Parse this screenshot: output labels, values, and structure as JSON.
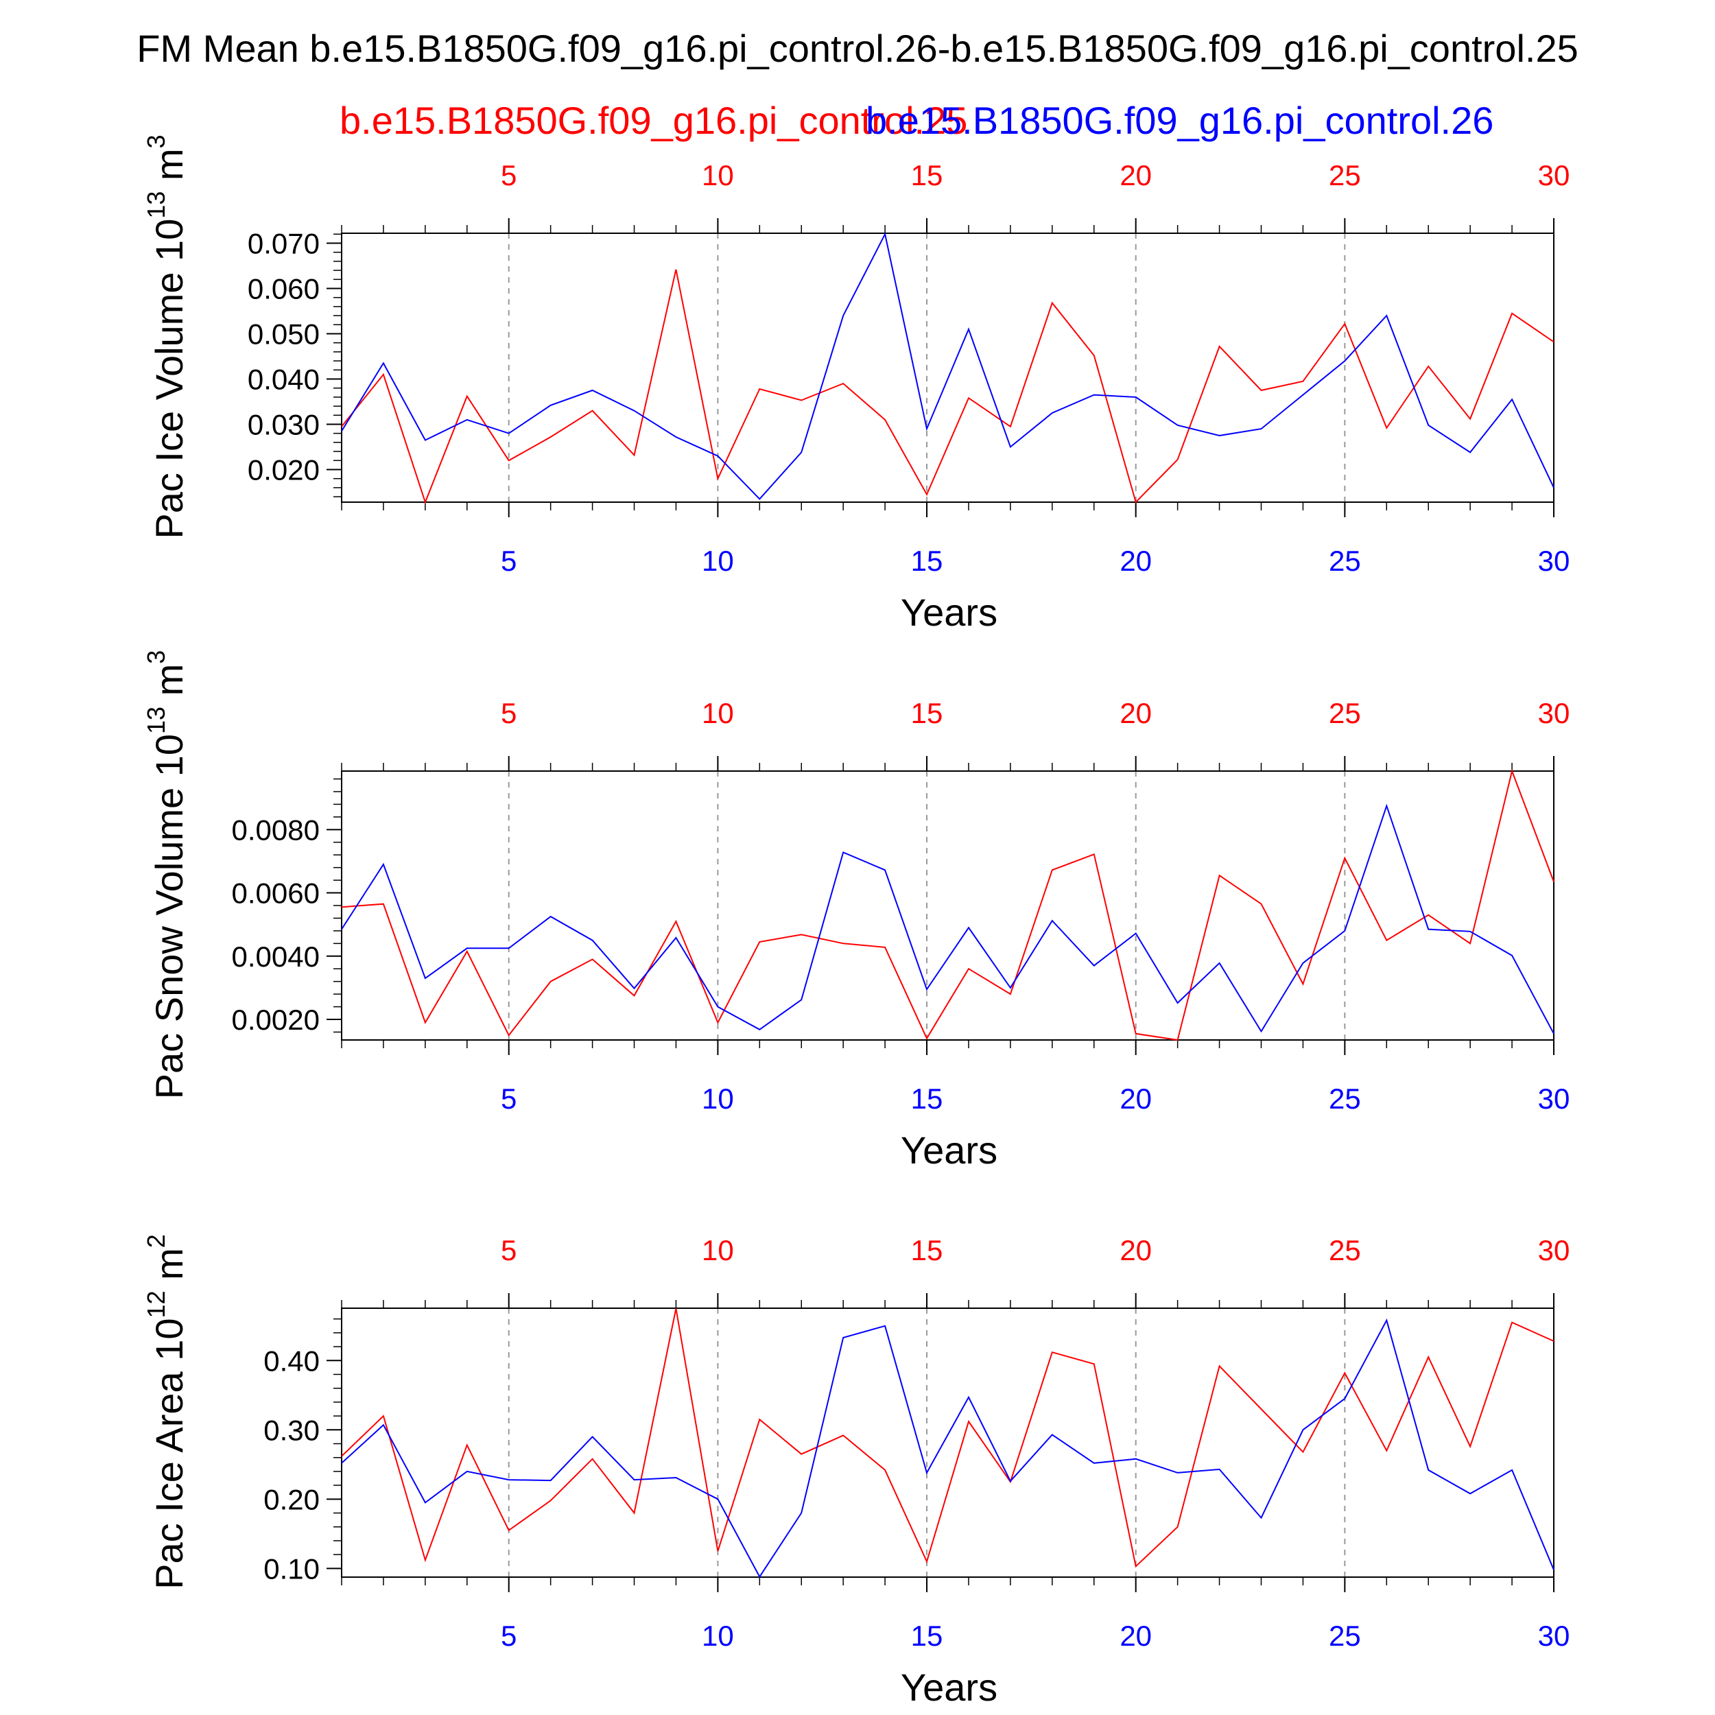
{
  "title": "FM Mean b.e15.B1850G.f09_g16.pi_control.26-b.e15.B1850G.f09_g16.pi_control.25",
  "legend": {
    "red_label": "b.e15.B1850G.f09_g16.pi_control.25",
    "blue_label": "b.e15.B1850G.f09_g16.pi_control.26"
  },
  "colors": {
    "red": "#ff0000",
    "blue": "#0000ff",
    "axis": "#000000",
    "grid": "#999999"
  },
  "chart_data": [
    {
      "type": "line",
      "ylabel": "Pac Ice Volume 10",
      "yunit_exp": "13",
      "yunit_rest": " m",
      "yunit_pow": "3",
      "xlabel": "Years",
      "xlim": [
        1,
        30
      ],
      "ylim": [
        0.0128,
        0.0722
      ],
      "yticks": [
        0.02,
        0.03,
        0.04,
        0.05,
        0.06,
        0.07
      ],
      "ytick_labels": [
        "0.020",
        "0.030",
        "0.040",
        "0.050",
        "0.060",
        "0.070"
      ],
      "yminor": 0.002,
      "xticks": [
        5,
        10,
        15,
        20,
        25,
        30
      ],
      "xtick_labels": [
        "5",
        "10",
        "15",
        "20",
        "25",
        "30"
      ],
      "x": [
        1,
        2,
        3,
        4,
        5,
        6,
        7,
        8,
        9,
        10,
        11,
        12,
        13,
        14,
        15,
        16,
        17,
        18,
        19,
        20,
        21,
        22,
        23,
        24,
        25,
        26,
        27,
        28,
        29,
        30
      ],
      "series": [
        {
          "name": "b.e15.B1850G.f09_g16.pi_control.25",
          "color": "red",
          "values": [
            0.0295,
            0.041,
            0.0128,
            0.0362,
            0.022,
            0.0272,
            0.033,
            0.0232,
            0.0642,
            0.018,
            0.0378,
            0.0353,
            0.039,
            0.031,
            0.0145,
            0.0358,
            0.0295,
            0.0568,
            0.0452,
            0.0128,
            0.0222,
            0.0472,
            0.0375,
            0.0395,
            0.0522,
            0.0292,
            0.0428,
            0.0312,
            0.0545,
            0.0482
          ]
        },
        {
          "name": "b.e15.B1850G.f09_g16.pi_control.26",
          "color": "blue",
          "values": [
            0.0285,
            0.0435,
            0.0265,
            0.031,
            0.028,
            0.0342,
            0.0375,
            0.033,
            0.0272,
            0.023,
            0.0135,
            0.0238,
            0.054,
            0.072,
            0.029,
            0.051,
            0.025,
            0.0325,
            0.0365,
            0.036,
            0.0298,
            0.0275,
            0.029,
            0.0365,
            0.044,
            0.054,
            0.0298,
            0.0238,
            0.0355,
            0.016
          ]
        }
      ]
    },
    {
      "type": "line",
      "ylabel": "Pac Snow Volume 10",
      "yunit_exp": "13",
      "yunit_rest": " m",
      "yunit_pow": "3",
      "xlabel": "Years",
      "xlim": [
        1,
        30
      ],
      "ylim": [
        0.00135,
        0.00985
      ],
      "yticks": [
        0.002,
        0.004,
        0.006,
        0.008
      ],
      "ytick_labels": [
        "0.0020",
        "0.0040",
        "0.0060",
        "0.0080"
      ],
      "yminor": 0.0004,
      "xticks": [
        5,
        10,
        15,
        20,
        25,
        30
      ],
      "xtick_labels": [
        "5",
        "10",
        "15",
        "20",
        "25",
        "30"
      ],
      "x": [
        1,
        2,
        3,
        4,
        5,
        6,
        7,
        8,
        9,
        10,
        11,
        12,
        13,
        14,
        15,
        16,
        17,
        18,
        19,
        20,
        21,
        22,
        23,
        24,
        25,
        26,
        27,
        28,
        29,
        30
      ],
      "series": [
        {
          "name": "b.e15.B1850G.f09_g16.pi_control.25",
          "color": "red",
          "values": [
            0.00555,
            0.00565,
            0.0019,
            0.00415,
            0.0015,
            0.0032,
            0.0039,
            0.00275,
            0.0051,
            0.0019,
            0.00445,
            0.00468,
            0.0044,
            0.00428,
            0.0014,
            0.0036,
            0.0028,
            0.00672,
            0.00722,
            0.00155,
            0.00135,
            0.00655,
            0.00565,
            0.00312,
            0.0071,
            0.0045,
            0.0053,
            0.0044,
            0.00985,
            0.00635
          ]
        },
        {
          "name": "b.e15.B1850G.f09_g16.pi_control.26",
          "color": "blue",
          "values": [
            0.00485,
            0.0069,
            0.0033,
            0.00425,
            0.00425,
            0.00525,
            0.0045,
            0.00298,
            0.00458,
            0.0024,
            0.00168,
            0.00262,
            0.00728,
            0.00672,
            0.00295,
            0.0049,
            0.003,
            0.00512,
            0.0037,
            0.00472,
            0.00252,
            0.00378,
            0.00162,
            0.00378,
            0.0048,
            0.00875,
            0.00485,
            0.00478,
            0.00402,
            0.00155
          ]
        }
      ]
    },
    {
      "type": "line",
      "ylabel": "Pac Ice Area 10",
      "yunit_exp": "12",
      "yunit_rest": " m",
      "yunit_pow": "2",
      "xlabel": "Years",
      "xlim": [
        1,
        30
      ],
      "ylim": [
        0.0875,
        0.4755
      ],
      "yticks": [
        0.1,
        0.2,
        0.3,
        0.4
      ],
      "ytick_labels": [
        "0.10",
        "0.20",
        "0.30",
        "0.40"
      ],
      "yminor": 0.02,
      "xticks": [
        5,
        10,
        15,
        20,
        25,
        30
      ],
      "xtick_labels": [
        "5",
        "10",
        "15",
        "20",
        "25",
        "30"
      ],
      "x": [
        1,
        2,
        3,
        4,
        5,
        6,
        7,
        8,
        9,
        10,
        11,
        12,
        13,
        14,
        15,
        16,
        17,
        18,
        19,
        20,
        21,
        22,
        23,
        24,
        25,
        26,
        27,
        28,
        29,
        30
      ],
      "series": [
        {
          "name": "b.e15.B1850G.f09_g16.pi_control.25",
          "color": "red",
          "values": [
            0.262,
            0.32,
            0.112,
            0.278,
            0.155,
            0.198,
            0.258,
            0.18,
            0.475,
            0.125,
            0.315,
            0.265,
            0.292,
            0.242,
            0.11,
            0.312,
            0.225,
            0.412,
            0.395,
            0.103,
            0.16,
            0.392,
            0.33,
            0.268,
            0.382,
            0.27,
            0.405,
            0.276,
            0.455,
            0.428
          ]
        },
        {
          "name": "b.e15.B1850G.f09_g16.pi_control.26",
          "color": "blue",
          "values": [
            0.252,
            0.307,
            0.195,
            0.24,
            0.228,
            0.227,
            0.29,
            0.228,
            0.231,
            0.2,
            0.088,
            0.18,
            0.433,
            0.45,
            0.238,
            0.347,
            0.226,
            0.293,
            0.252,
            0.258,
            0.238,
            0.243,
            0.173,
            0.3,
            0.345,
            0.458,
            0.242,
            0.208,
            0.242,
            0.098
          ]
        }
      ]
    }
  ]
}
